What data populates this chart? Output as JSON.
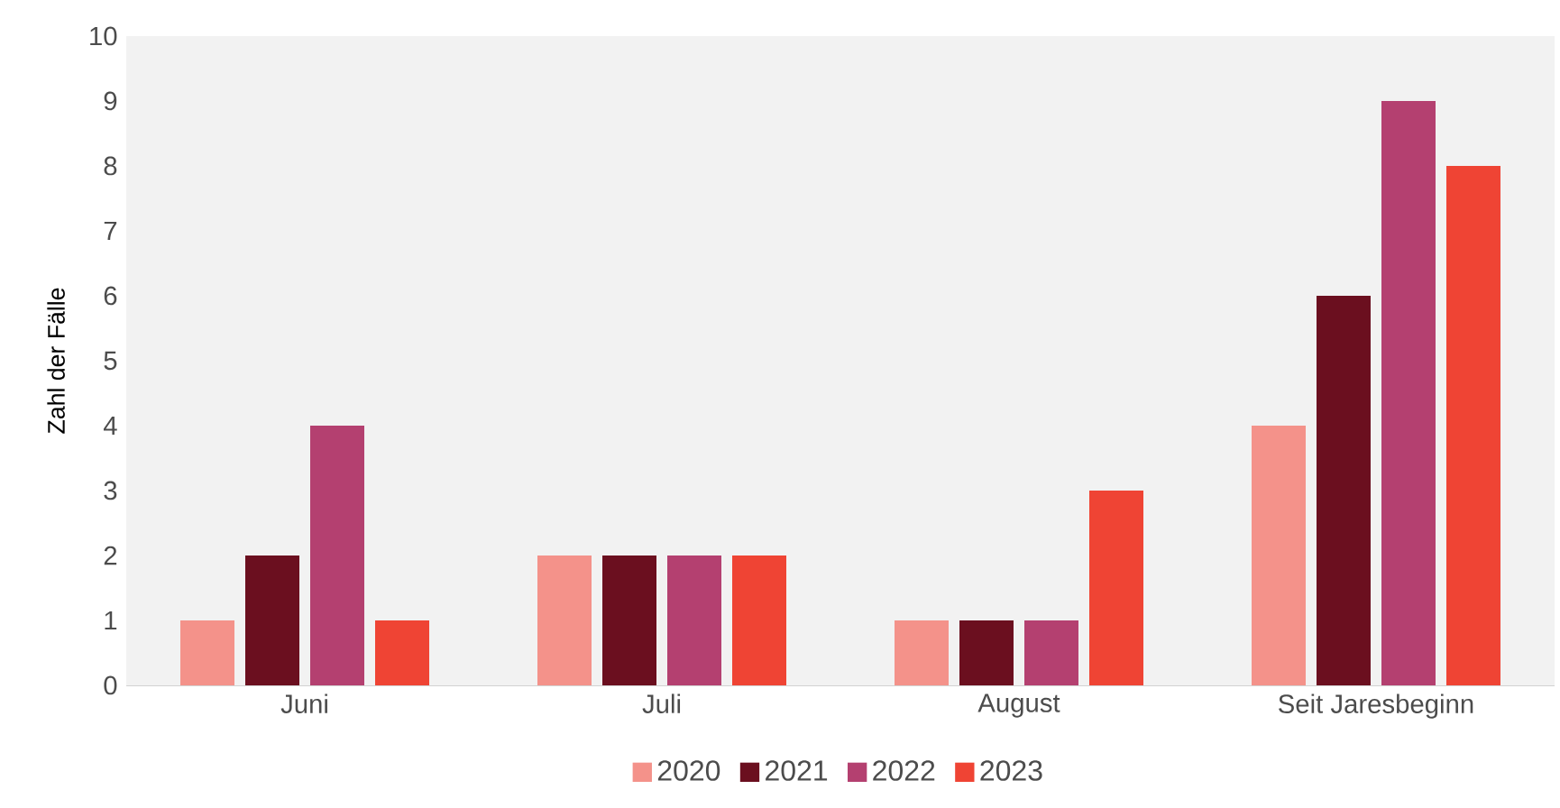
{
  "chart_data": {
    "type": "bar",
    "ylabel": "Zahl der Fälle",
    "categories": [
      "Juni",
      "Juli",
      "August",
      "Seit Jaresbeginn"
    ],
    "series": [
      {
        "name": "2020",
        "color": "#f4928a",
        "values": [
          1,
          2,
          1,
          4
        ]
      },
      {
        "name": "2021",
        "color": "#6b0f1f",
        "values": [
          2,
          2,
          1,
          6
        ]
      },
      {
        "name": "2022",
        "color": "#b44070",
        "values": [
          4,
          2,
          1,
          9
        ]
      },
      {
        "name": "2023",
        "color": "#ef4434",
        "values": [
          1,
          2,
          3,
          8
        ]
      }
    ],
    "ylim": [
      0,
      10
    ],
    "yticks": [
      0,
      1,
      2,
      3,
      4,
      5,
      6,
      7,
      8,
      9,
      10
    ],
    "legend": "bottom"
  }
}
